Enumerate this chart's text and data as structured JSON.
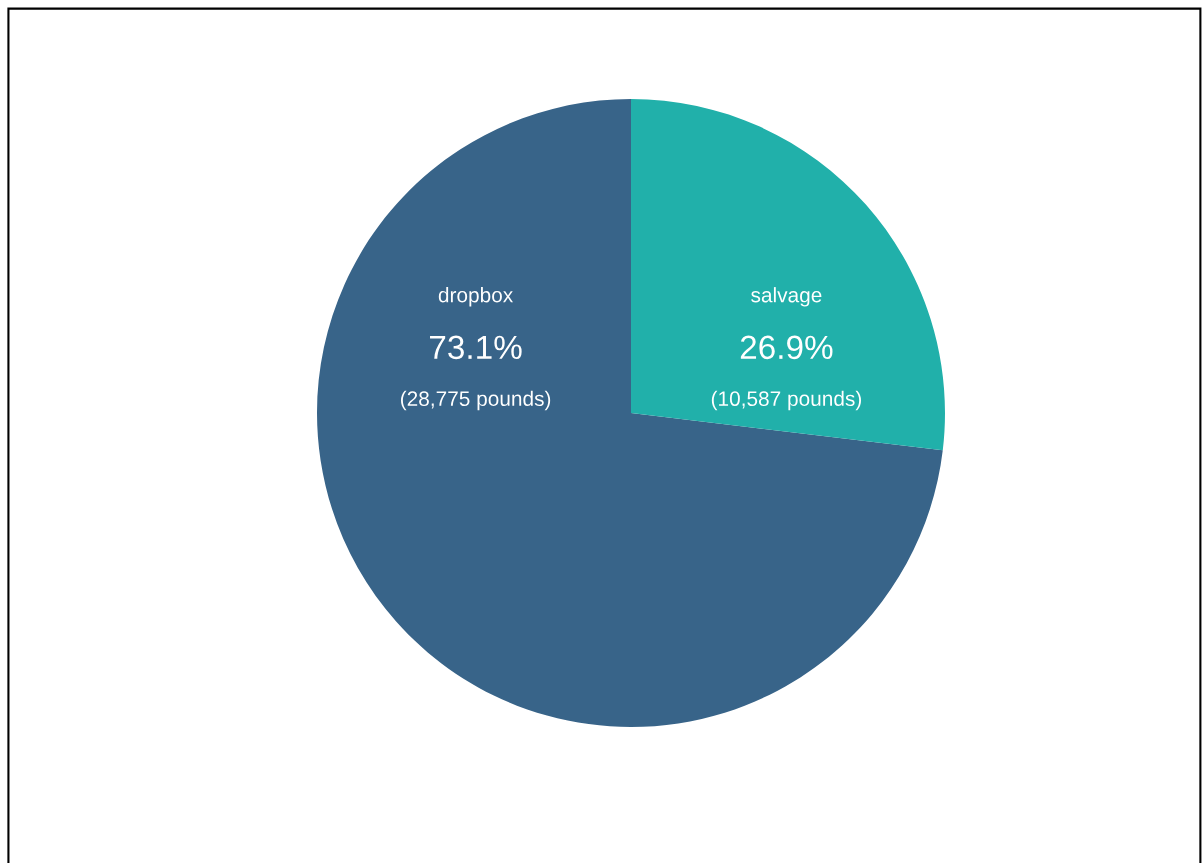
{
  "chart_data": {
    "type": "pie",
    "categories": [
      "dropbox",
      "salvage"
    ],
    "values": [
      28775,
      10587
    ],
    "colors": [
      "#386489",
      "#21b0aa"
    ],
    "value_labels": [
      "73.1%\n(28,775 pounds)",
      "26.9%\n(10,587 pounds)"
    ],
    "legend": false
  }
}
